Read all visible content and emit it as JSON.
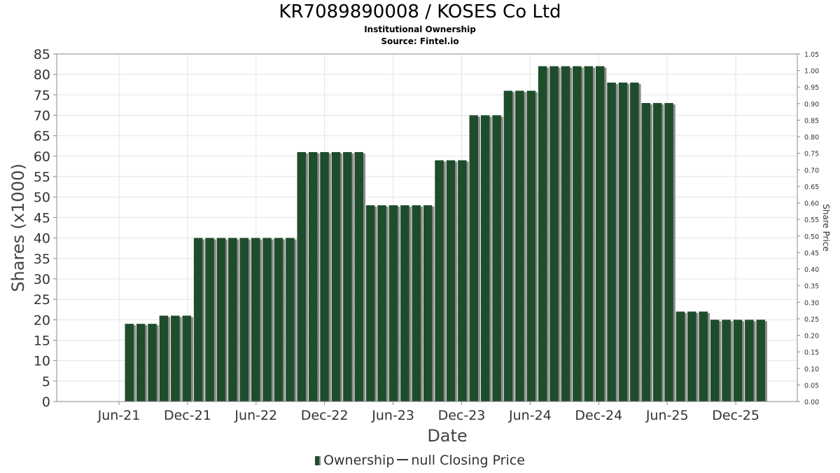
{
  "chart_data": {
    "type": "bar",
    "title": "KR7089890008 / KOSES Co Ltd",
    "subtitle": "Institutional Ownership",
    "source": "Source: Fintel.io",
    "xlabel": "Date",
    "ylabel": "Shares (x1000)",
    "y2label": "Share Price",
    "ylim": [
      0,
      85
    ],
    "y2lim": [
      0,
      1.05
    ],
    "yticks": [
      "0",
      "5",
      "10",
      "15",
      "20",
      "25",
      "30",
      "35",
      "40",
      "45",
      "50",
      "55",
      "60",
      "65",
      "70",
      "75",
      "80",
      "85"
    ],
    "y2ticks": [
      "0.00",
      "0.05",
      "0.10",
      "0.15",
      "0.20",
      "0.25",
      "0.30",
      "0.35",
      "0.40",
      "0.45",
      "0.50",
      "0.55",
      "0.60",
      "0.65",
      "0.70",
      "0.75",
      "0.80",
      "0.85",
      "0.90",
      "0.95",
      "1.00",
      "1.05"
    ],
    "xticks": [
      "Jun-21",
      "Dec-21",
      "Jun-22",
      "Dec-22",
      "Jun-23",
      "Dec-23",
      "Jun-24",
      "Dec-24",
      "Jun-25",
      "Dec-25"
    ],
    "grid": true,
    "legend_position": "bottom",
    "series": [
      {
        "name": "Ownership",
        "color": "#1e4d2b",
        "values": [
          19,
          19,
          19,
          21,
          21,
          21,
          40,
          40,
          40,
          40,
          40,
          40,
          40,
          40,
          40,
          61,
          61,
          61,
          61,
          61,
          61,
          48,
          48,
          48,
          48,
          48,
          48,
          59,
          59,
          59,
          70,
          70,
          70,
          76,
          76,
          76,
          82,
          82,
          82,
          82,
          82,
          82,
          78,
          78,
          78,
          73,
          73,
          73,
          22,
          22,
          22,
          20,
          20,
          20,
          20,
          20
        ]
      }
    ],
    "legend": {
      "ownership_label": "Ownership",
      "price_label": "null Closing Price"
    }
  }
}
